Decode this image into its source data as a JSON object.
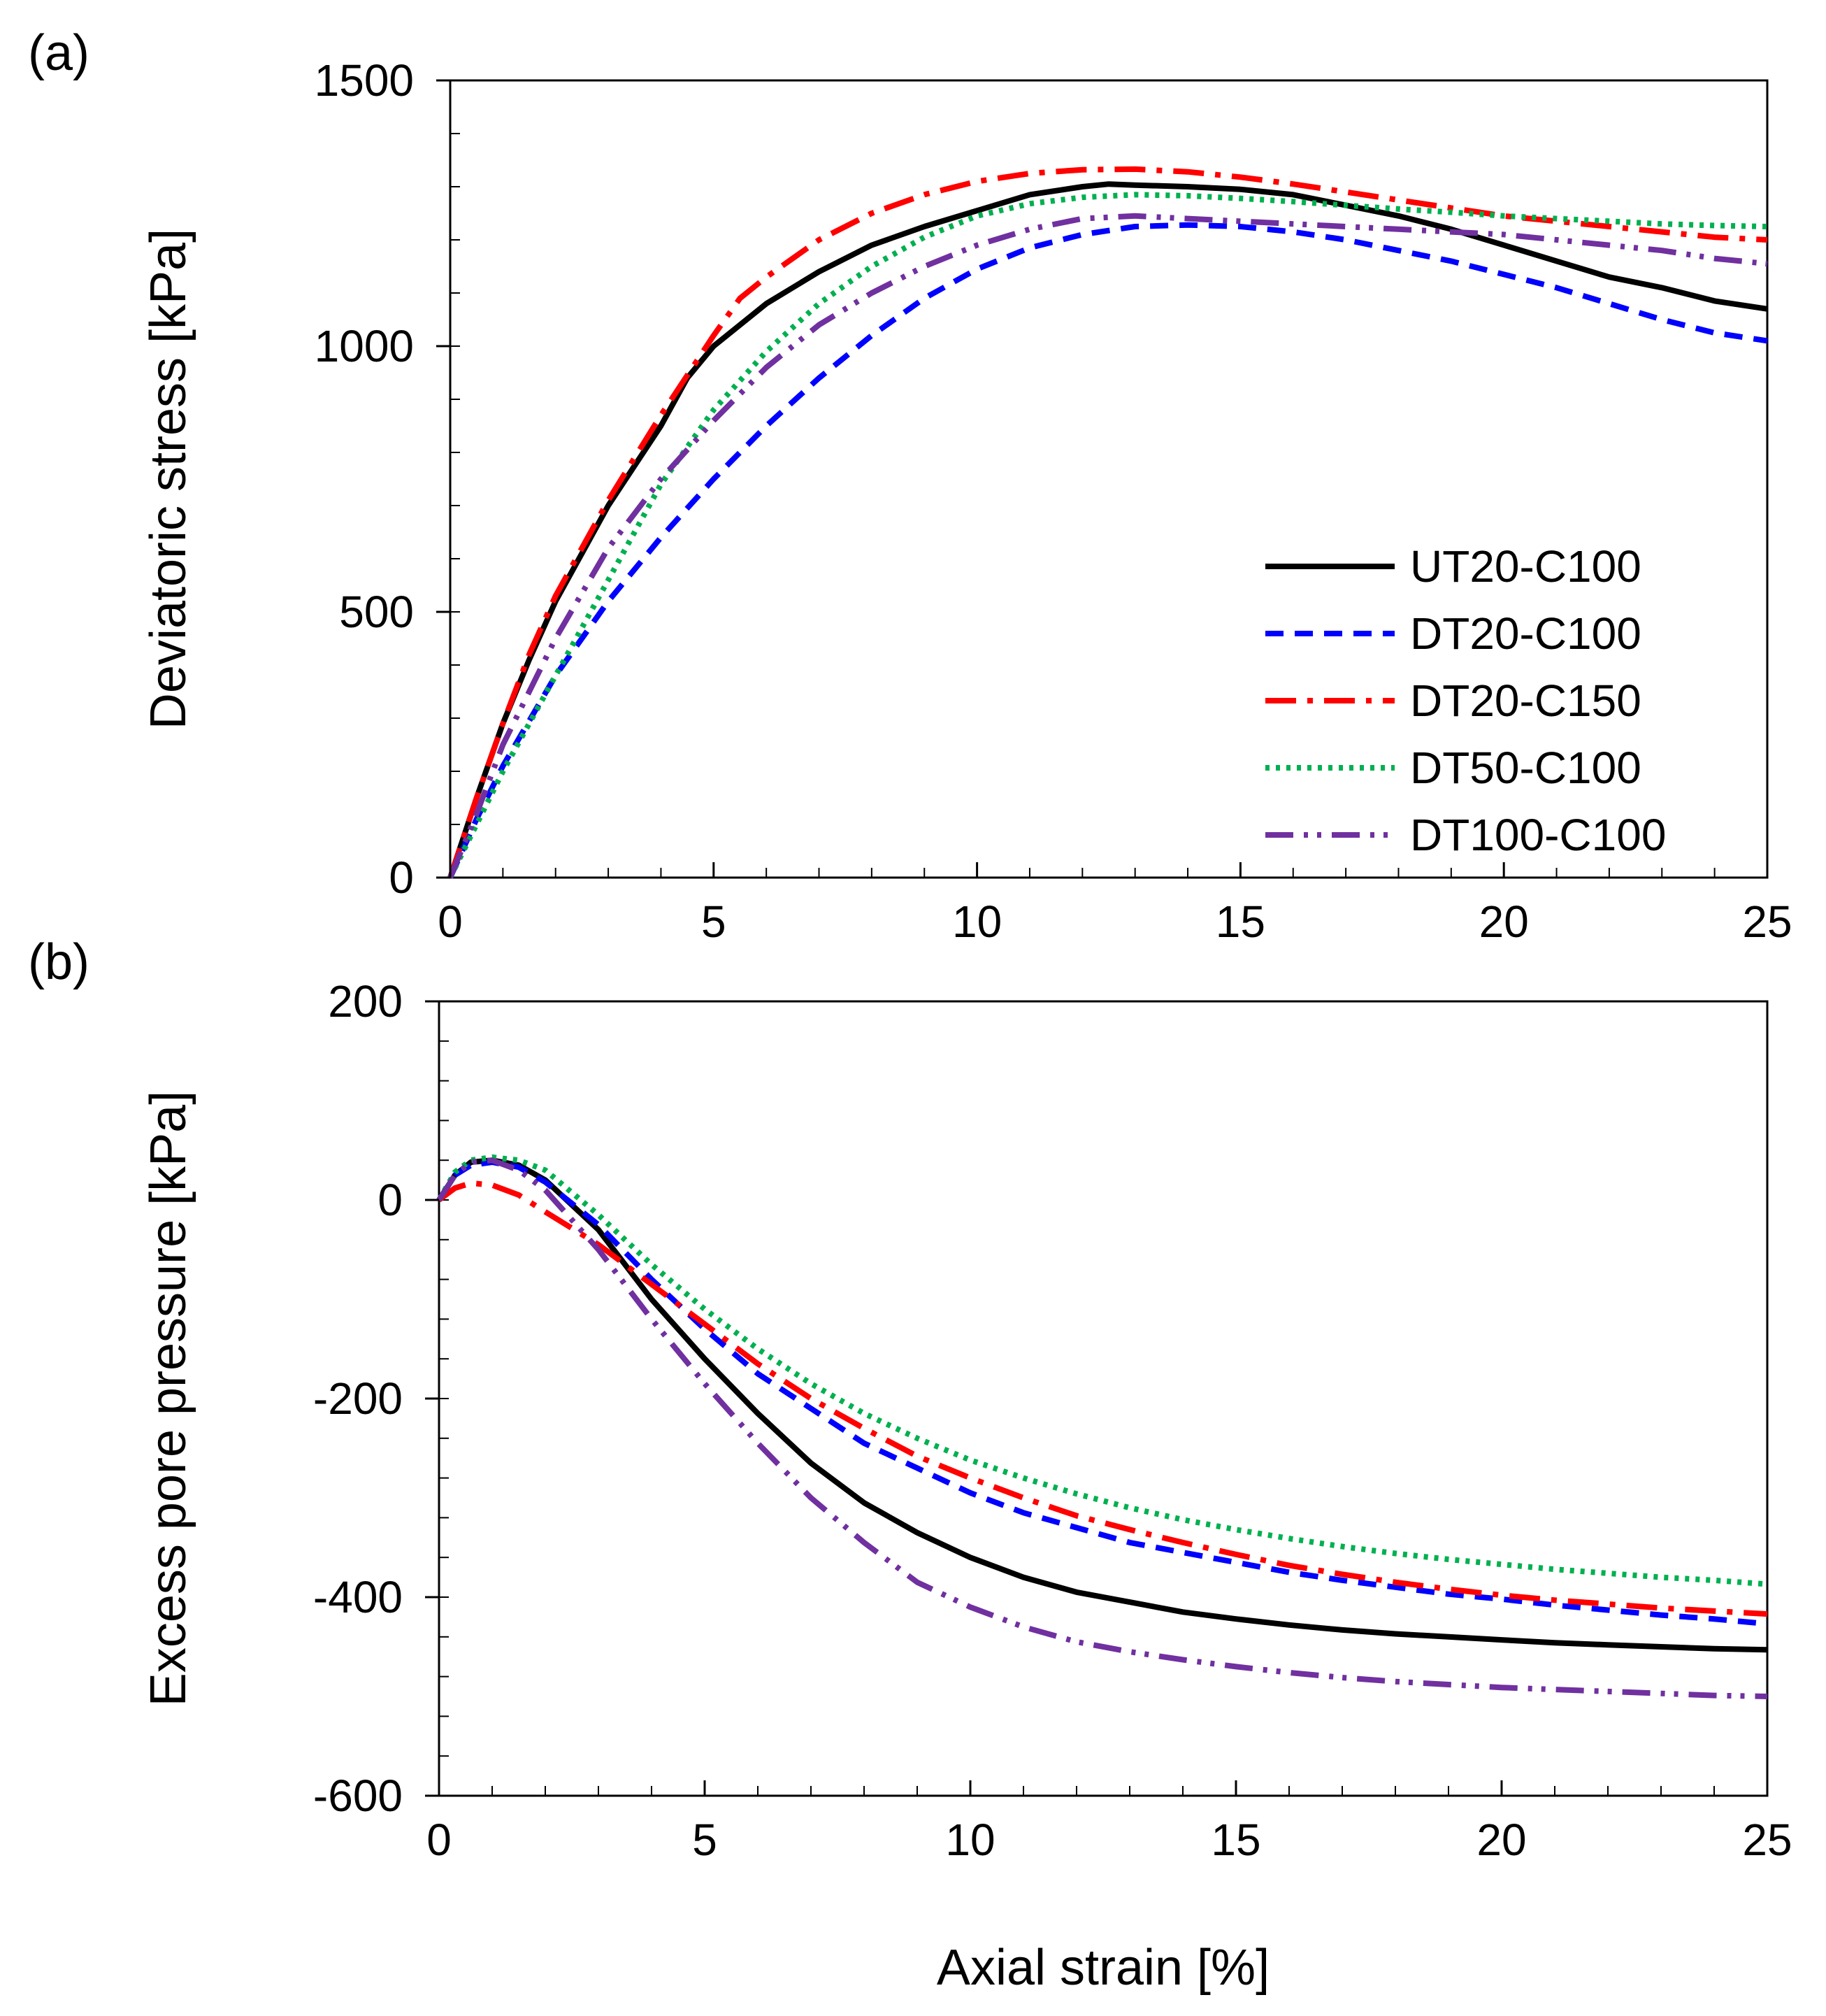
{
  "chart_data": [
    {
      "type": "line",
      "panel_label": "(a)",
      "xlabel": "",
      "ylabel": "Deviatoric stress [kPa]",
      "xlim": [
        0,
        25
      ],
      "ylim": [
        0,
        1500
      ],
      "xticks": [
        "0",
        "5",
        "10",
        "15",
        "20",
        "25"
      ],
      "yticks": [
        "0",
        "500",
        "1000",
        "1500"
      ],
      "legend_position": "right",
      "series": [
        {
          "name": "UT20-C100",
          "color": "#000000",
          "x": [
            0,
            0.5,
            1,
            1.5,
            2,
            3,
            4,
            4.5,
            5,
            6,
            7,
            8,
            9,
            10,
            11,
            12,
            12.5,
            13,
            14,
            15,
            16,
            17,
            18,
            19,
            20,
            21,
            22,
            23,
            24,
            25
          ],
          "y": [
            0,
            150,
            290,
            410,
            520,
            700,
            850,
            940,
            1000,
            1080,
            1140,
            1190,
            1225,
            1255,
            1285,
            1300,
            1305,
            1303,
            1300,
            1295,
            1285,
            1265,
            1245,
            1220,
            1190,
            1160,
            1130,
            1110,
            1085,
            1070
          ]
        },
        {
          "name": "DT20-C100",
          "color": "#0000ff",
          "x": [
            0,
            0.5,
            1,
            2,
            3,
            4,
            5,
            6,
            7,
            8,
            9,
            10,
            11,
            12,
            13,
            14,
            15,
            16,
            17,
            18,
            19,
            20,
            21,
            22,
            23,
            24,
            25
          ],
          "y": [
            0,
            110,
            210,
            380,
            520,
            640,
            750,
            850,
            940,
            1020,
            1090,
            1145,
            1185,
            1210,
            1225,
            1228,
            1225,
            1215,
            1200,
            1180,
            1160,
            1135,
            1110,
            1080,
            1050,
            1025,
            1010
          ]
        },
        {
          "name": "DT20-C150",
          "color": "#ff0000",
          "x": [
            0,
            0.5,
            1,
            1.5,
            2,
            3,
            4,
            5,
            5.5,
            6,
            7,
            8,
            9,
            10,
            11,
            12,
            13,
            14,
            15,
            16,
            17,
            18,
            19,
            20,
            21,
            22,
            23,
            24,
            25
          ],
          "y": [
            0,
            150,
            290,
            420,
            530,
            710,
            870,
            1020,
            1090,
            1130,
            1200,
            1250,
            1285,
            1310,
            1325,
            1332,
            1333,
            1328,
            1318,
            1305,
            1290,
            1275,
            1260,
            1245,
            1235,
            1225,
            1215,
            1205,
            1200
          ]
        },
        {
          "name": "DT50-C100",
          "color": "#00b050",
          "x": [
            0,
            0.5,
            1,
            2,
            3,
            4,
            5,
            6,
            7,
            8,
            9,
            10,
            11,
            12,
            13,
            14,
            15,
            16,
            17,
            18,
            19,
            20,
            21,
            22,
            23,
            24,
            25
          ],
          "y": [
            0,
            100,
            200,
            380,
            560,
            740,
            880,
            990,
            1080,
            1150,
            1205,
            1245,
            1268,
            1280,
            1285,
            1283,
            1278,
            1272,
            1265,
            1258,
            1252,
            1245,
            1240,
            1235,
            1230,
            1227,
            1225
          ]
        },
        {
          "name": "DT100-C100",
          "color": "#7030a0",
          "x": [
            0,
            0.5,
            1,
            2,
            3,
            4,
            5,
            6,
            7,
            8,
            9,
            10,
            11,
            12,
            13,
            14,
            15,
            16,
            17,
            18,
            19,
            20,
            21,
            22,
            23,
            24,
            25
          ],
          "y": [
            0,
            120,
            250,
            450,
            620,
            750,
            860,
            960,
            1040,
            1100,
            1150,
            1190,
            1220,
            1240,
            1245,
            1240,
            1235,
            1230,
            1225,
            1220,
            1215,
            1210,
            1200,
            1190,
            1180,
            1165,
            1155
          ]
        }
      ]
    },
    {
      "type": "line",
      "panel_label": "(b)",
      "xlabel": "Axial strain [%]",
      "ylabel": "Excess pore pressure [kPa]",
      "xlim": [
        0,
        25
      ],
      "ylim": [
        -600,
        200
      ],
      "xticks": [
        "0",
        "5",
        "10",
        "15",
        "20",
        "25"
      ],
      "yticks": [
        "-600",
        "-400",
        "-200",
        "0",
        "200"
      ],
      "series": [
        {
          "name": "UT20-C100",
          "color": "#000000",
          "x": [
            0,
            0.3,
            0.6,
            1,
            1.5,
            2,
            3,
            4,
            5,
            6,
            7,
            8,
            9,
            10,
            11,
            12,
            13,
            14,
            15,
            16,
            17,
            18,
            19,
            20,
            21,
            22,
            23,
            24,
            25
          ],
          "y": [
            0,
            25,
            38,
            40,
            35,
            20,
            -30,
            -100,
            -160,
            -215,
            -265,
            -305,
            -335,
            -360,
            -380,
            -395,
            -405,
            -415,
            -422,
            -428,
            -433,
            -437,
            -440,
            -443,
            -446,
            -448,
            -450,
            -452,
            -453
          ]
        },
        {
          "name": "DT20-C100",
          "color": "#0000ff",
          "x": [
            0,
            0.3,
            0.6,
            1,
            1.5,
            2,
            3,
            4,
            5,
            6,
            7,
            8,
            9,
            10,
            11,
            12,
            13,
            14,
            15,
            16,
            17,
            18,
            19,
            20,
            21,
            22,
            23,
            24,
            25
          ],
          "y": [
            0,
            25,
            35,
            38,
            33,
            18,
            -25,
            -80,
            -130,
            -175,
            -210,
            -245,
            -270,
            -295,
            -315,
            -330,
            -345,
            -355,
            -365,
            -375,
            -383,
            -390,
            -397,
            -402,
            -408,
            -413,
            -418,
            -422,
            -427
          ]
        },
        {
          "name": "DT20-C150",
          "color": "#ff0000",
          "x": [
            0,
            0.3,
            0.6,
            1,
            1.5,
            2,
            3,
            4,
            5,
            6,
            7,
            8,
            9,
            10,
            11,
            12,
            13,
            14,
            15,
            16,
            17,
            18,
            19,
            20,
            21,
            22,
            23,
            24,
            25
          ],
          "y": [
            0,
            12,
            17,
            15,
            5,
            -12,
            -45,
            -85,
            -125,
            -165,
            -200,
            -230,
            -258,
            -280,
            -300,
            -318,
            -332,
            -345,
            -357,
            -368,
            -377,
            -385,
            -392,
            -398,
            -403,
            -407,
            -411,
            -414,
            -417
          ]
        },
        {
          "name": "DT50-C100",
          "color": "#00b050",
          "x": [
            0,
            0.3,
            0.6,
            1,
            1.5,
            2,
            3,
            4,
            5,
            6,
            7,
            8,
            9,
            10,
            11,
            12,
            13,
            14,
            15,
            16,
            17,
            18,
            19,
            20,
            21,
            22,
            23,
            24,
            25
          ],
          "y": [
            0,
            28,
            40,
            43,
            40,
            30,
            -15,
            -65,
            -110,
            -150,
            -185,
            -215,
            -240,
            -262,
            -280,
            -296,
            -310,
            -322,
            -332,
            -341,
            -349,
            -356,
            -362,
            -367,
            -372,
            -376,
            -380,
            -383,
            -387
          ]
        },
        {
          "name": "DT100-C100",
          "color": "#7030a0",
          "x": [
            0,
            0.3,
            0.6,
            1,
            1.5,
            2,
            3,
            4,
            5,
            6,
            7,
            8,
            9,
            10,
            11,
            12,
            13,
            14,
            15,
            16,
            17,
            18,
            19,
            20,
            21,
            22,
            23,
            24,
            25
          ],
          "y": [
            0,
            25,
            38,
            40,
            30,
            10,
            -50,
            -120,
            -185,
            -245,
            -300,
            -345,
            -385,
            -410,
            -430,
            -445,
            -455,
            -463,
            -470,
            -476,
            -481,
            -485,
            -488,
            -491,
            -493,
            -495,
            -497,
            -499,
            -500
          ]
        }
      ]
    }
  ]
}
